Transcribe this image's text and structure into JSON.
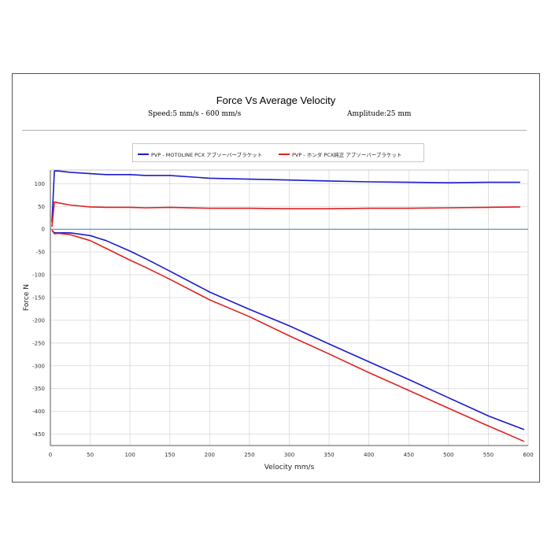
{
  "chart_data": {
    "type": "line",
    "title": "Force Vs Average Velocity",
    "subtitle_left": "Speed:5 mm/s - 600 mm/s",
    "subtitle_right": "Amplitude:25 mm",
    "xlabel": "Velocity mm/s",
    "ylabel": "Force N",
    "xlim": [
      0,
      600
    ],
    "ylim": [
      -475,
      130
    ],
    "x_ticks": [
      0,
      50,
      100,
      150,
      200,
      250,
      300,
      350,
      400,
      450,
      500,
      550,
      600
    ],
    "y_ticks": [
      100,
      50,
      0,
      -50,
      -100,
      -150,
      -200,
      -250,
      -300,
      -350,
      -400,
      -450
    ],
    "grid": true,
    "legend_position": "top-center",
    "series": [
      {
        "name": "PVP - MOTOLINE PCX アブソーバーブラケット",
        "color": "#1a1acc",
        "branch": "extension",
        "x": [
          2,
          5,
          10,
          25,
          50,
          70,
          100,
          120,
          150,
          200,
          250,
          300,
          350,
          400,
          450,
          500,
          550,
          590
        ],
        "y": [
          15,
          128,
          128,
          125,
          122,
          120,
          120,
          118,
          118,
          112,
          110,
          108,
          106,
          104,
          103,
          102,
          103,
          103
        ]
      },
      {
        "name": "PVP - MOTOLINE PCX アブソーバーブラケット",
        "color": "#1a1acc",
        "branch": "compression",
        "x": [
          2,
          5,
          10,
          25,
          50,
          70,
          100,
          120,
          150,
          200,
          250,
          300,
          350,
          400,
          450,
          500,
          550,
          595
        ],
        "y": [
          -2,
          -8,
          -8,
          -8,
          -14,
          -25,
          -48,
          -65,
          -92,
          -138,
          -176,
          -212,
          -252,
          -291,
          -330,
          -370,
          -410,
          -440
        ]
      },
      {
        "name": "PVP - ホンダ PCX純正 アブソーバーブラケット",
        "color": "#e02020",
        "branch": "extension",
        "x": [
          2,
          5,
          10,
          25,
          50,
          70,
          100,
          120,
          150,
          200,
          250,
          300,
          350,
          400,
          450,
          500,
          550,
          590
        ],
        "y": [
          5,
          60,
          58,
          53,
          49,
          48,
          48,
          47,
          48,
          46,
          46,
          45,
          45,
          46,
          46,
          47,
          48,
          49
        ]
      },
      {
        "name": "PVP - ホンダ PCX純正 アブソーバーブラケット",
        "color": "#e02020",
        "branch": "compression",
        "x": [
          2,
          5,
          10,
          25,
          50,
          70,
          100,
          120,
          150,
          200,
          250,
          300,
          350,
          400,
          450,
          500,
          550,
          595
        ],
        "y": [
          -2,
          -10,
          -9,
          -12,
          -25,
          -42,
          -68,
          -84,
          -110,
          -155,
          -192,
          -234,
          -274,
          -315,
          -354,
          -393,
          -432,
          -466
        ]
      }
    ]
  }
}
